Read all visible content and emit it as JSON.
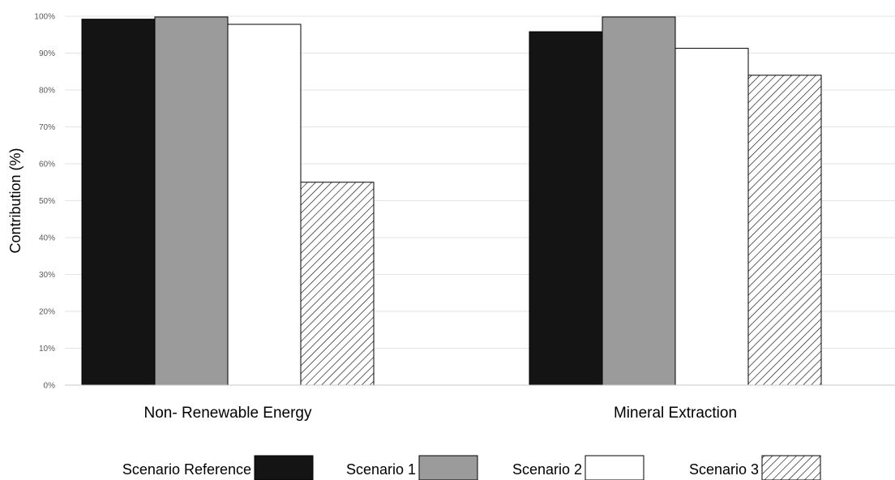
{
  "chart_data": {
    "type": "bar",
    "title": "",
    "xlabel": "",
    "ylabel": "Contribution (%)",
    "ylim": [
      0,
      100
    ],
    "yticks": [
      "0%",
      "10%",
      "20%",
      "30%",
      "40%",
      "50%",
      "60%",
      "70%",
      "80%",
      "90%",
      "100%"
    ],
    "grid": true,
    "legend_position": "bottom",
    "categories": [
      "Non- Renewable Energy",
      "Mineral Extraction"
    ],
    "series": [
      {
        "name": "Scenario Reference",
        "values": [
          99.2,
          95.8
        ],
        "color": "#141414",
        "pattern": "solid"
      },
      {
        "name": "Scenario 1",
        "values": [
          99.8,
          99.8
        ],
        "color": "#9b9b9b",
        "pattern": "solid"
      },
      {
        "name": "Scenario 2",
        "values": [
          97.8,
          91.3
        ],
        "color": "#ffffff",
        "pattern": "solid"
      },
      {
        "name": "Scenario 3",
        "values": [
          55.0,
          84.0
        ],
        "color": "#ffffff",
        "pattern": "diagonal-hatch"
      }
    ]
  }
}
